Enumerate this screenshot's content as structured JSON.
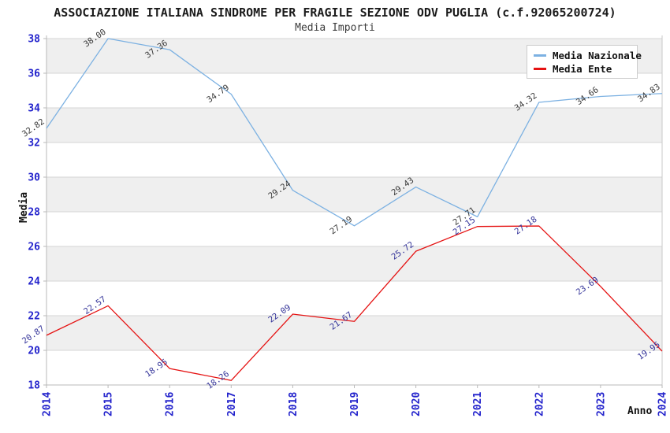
{
  "chart_data": {
    "type": "line",
    "title": "ASSOCIAZIONE ITALIANA SINDROME PER FRAGILE SEZIONE ODV PUGLIA (c.f.92065200724)",
    "subtitle": "Media Importi",
    "xlabel": "Anno",
    "ylabel": "Media",
    "ylim": [
      18,
      38
    ],
    "ytick_step": 2,
    "grid": "horizontal-gridlines-with-alternating-bands",
    "band_color": "#efefef",
    "legend_position": "top-right",
    "axis_tick_color": "#2323cc",
    "categories": [
      "2014",
      "2015",
      "2016",
      "2017",
      "2018",
      "2019",
      "2020",
      "2021",
      "2022",
      "2023",
      "2024"
    ],
    "series": [
      {
        "name": "Media Nazionale",
        "color": "#7CB1E2",
        "label_color": "#3a3a3a",
        "values": [
          32.82,
          38.0,
          37.36,
          34.79,
          29.24,
          27.19,
          29.43,
          27.71,
          34.32,
          34.66,
          34.83
        ]
      },
      {
        "name": "Media Ente",
        "color": "#E51212",
        "label_color": "#333399",
        "values": [
          20.87,
          22.57,
          18.95,
          18.26,
          22.09,
          21.67,
          25.72,
          27.15,
          27.18,
          23.69,
          19.95
        ]
      }
    ]
  }
}
